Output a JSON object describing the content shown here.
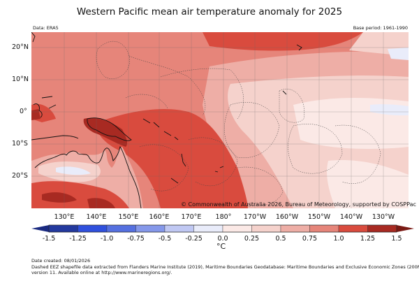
{
  "title": "Western Pacific mean air temperature anomaly for 2025",
  "data_source": "Data: ERA5",
  "base_period": "Base period: 1961-1990",
  "copyright": "© Commonwealth of Australia 2026, Bureau of Meteorology, supported by COSPPac",
  "lat_labels": [
    "20°N",
    "10°N",
    "0°",
    "10°S",
    "20°S"
  ],
  "lon_labels": [
    "130°E",
    "140°E",
    "150°E",
    "160°E",
    "170°E",
    "180°",
    "170°W",
    "160°W",
    "150°W",
    "140°W",
    "130°W"
  ],
  "colorbar": {
    "ticks": [
      "-1.5",
      "-1.25",
      "-1.0",
      "-0.75",
      "-0.5",
      "-0.25",
      "0.0",
      "0.25",
      "0.5",
      "0.75",
      "1.0",
      "1.25",
      "1.5"
    ],
    "unit": "°C",
    "colors": [
      "#23399e",
      "#2f50dd",
      "#5570e0",
      "#8598ea",
      "#c0c8f3",
      "#e9ecfa",
      "#fbe9e6",
      "#f5d2cc",
      "#eeaea6",
      "#e6857a",
      "#d94b3e",
      "#a82a22"
    ],
    "under_color": "#1a2a80",
    "over_color": "#7a1a14"
  },
  "footer": {
    "date_created": "Date created: 08/01/2026",
    "note_line1": "Dashed EEZ shapefile data extracted from Flanders Marine Institute (2019), Maritime Boundaries Geodatabase: Maritime Boundaries and Exclusive Economic Zones (200NM),",
    "note_line2": "version 11. Available online at http://www.marineregions.org/."
  }
}
